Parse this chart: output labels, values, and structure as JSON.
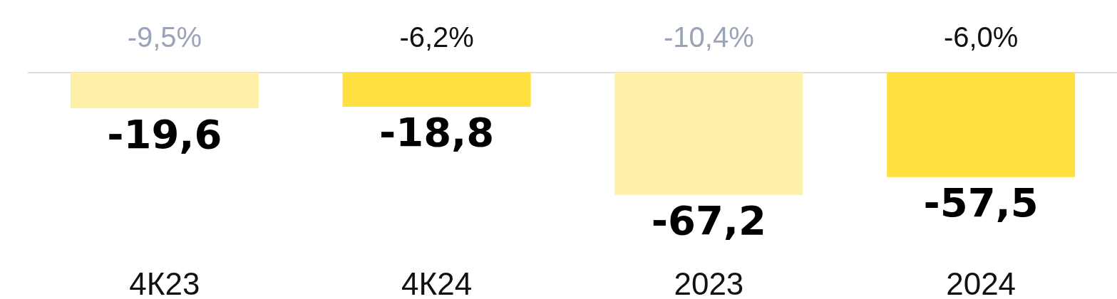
{
  "chart_data": {
    "type": "bar",
    "categories": [
      "4К23",
      "4К24",
      "2023",
      "2024"
    ],
    "values": [
      -19.6,
      -18.8,
      -67.2,
      -57.5
    ],
    "colors": [
      "#fff0a8",
      "#ffe03f",
      "#fff0a8",
      "#ffe03f"
    ],
    "value_labels": [
      "-19,6",
      "-18,8",
      "-67,2",
      "-57,5"
    ],
    "annotations": [
      "-9,5%",
      "-6,2%",
      "-10,4%",
      "-6,0%"
    ]
  }
}
